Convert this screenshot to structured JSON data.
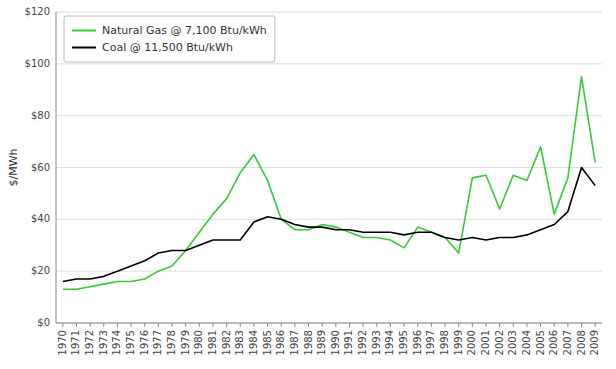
{
  "chart_data": {
    "type": "line",
    "ylabel": "$/MWh",
    "x": [
      1970,
      1971,
      1972,
      1973,
      1974,
      1975,
      1976,
      1977,
      1978,
      1979,
      1980,
      1981,
      1982,
      1983,
      1984,
      1985,
      1986,
      1987,
      1988,
      1989,
      1990,
      1991,
      1992,
      1993,
      1994,
      1995,
      1996,
      1997,
      1998,
      1999,
      2000,
      2001,
      2002,
      2003,
      2004,
      2005,
      2006,
      2007,
      2008,
      2009
    ],
    "series": [
      {
        "name": "Natural Gas @ 7,100 Btu/kWh",
        "color": "#33cc33",
        "values": [
          13,
          13,
          14,
          15,
          16,
          16,
          17,
          20,
          22,
          28,
          35,
          42,
          48,
          58,
          65,
          55,
          40,
          36,
          36,
          38,
          37,
          35,
          33,
          33,
          32,
          29,
          37,
          35,
          33,
          27,
          56,
          57,
          44,
          57,
          55,
          68,
          42,
          56,
          95,
          62
        ]
      },
      {
        "name": "Coal @ 11,500 Btu/kWh",
        "color": "#000000",
        "values": [
          16,
          17,
          17,
          18,
          20,
          22,
          24,
          27,
          28,
          28,
          30,
          32,
          32,
          32,
          39,
          41,
          40,
          38,
          37,
          37,
          36,
          36,
          35,
          35,
          35,
          34,
          35,
          35,
          33,
          32,
          33,
          32,
          33,
          33,
          34,
          36,
          38,
          43,
          60,
          53
        ]
      }
    ],
    "xlim": [
      1969.5,
      2009.5
    ],
    "xticks": [
      1970,
      1971,
      1972,
      1973,
      1974,
      1975,
      1976,
      1977,
      1978,
      1979,
      1980,
      1981,
      1982,
      1983,
      1984,
      1985,
      1986,
      1987,
      1988,
      1989,
      1990,
      1991,
      1992,
      1993,
      1994,
      1995,
      1996,
      1997,
      1998,
      1999,
      2000,
      2001,
      2002,
      2003,
      2004,
      2005,
      2006,
      2007,
      2008,
      2009
    ],
    "ylim": [
      0,
      120
    ],
    "yticks": [
      {
        "value": 0,
        "label": "$0"
      },
      {
        "value": 20,
        "label": "$20"
      },
      {
        "value": 40,
        "label": "$40"
      },
      {
        "value": 60,
        "label": "$60"
      },
      {
        "value": 80,
        "label": "$80"
      },
      {
        "value": 100,
        "label": "$100"
      },
      {
        "value": 120,
        "label": "$120"
      }
    ],
    "grid": true,
    "legend": "upper left"
  }
}
